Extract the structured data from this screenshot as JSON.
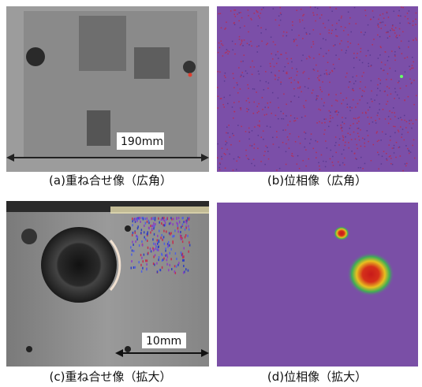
{
  "panels": [
    {
      "caption": "(a)重ね合せ像（広角）",
      "scale_label": "190mm"
    },
    {
      "caption": "(b)位相像（広角）"
    },
    {
      "caption": "(c)重ね合せ像（拡大）",
      "scale_label": "10mm"
    },
    {
      "caption": "(d)位相像（拡大）"
    }
  ]
}
